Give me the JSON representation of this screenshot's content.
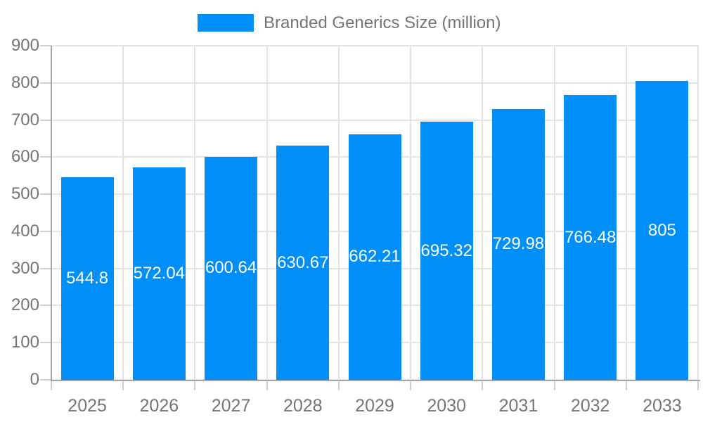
{
  "chart_data": {
    "type": "bar",
    "legend": "Branded Generics Size (million)",
    "legend_position": "top-center",
    "categories": [
      "2025",
      "2026",
      "2027",
      "2028",
      "2029",
      "2030",
      "2031",
      "2032",
      "2033"
    ],
    "series": [
      {
        "name": "Branded Generics Size (million)",
        "values": [
          544.8,
          572.04,
          600.64,
          630.67,
          662.21,
          695.32,
          729.98,
          766.48,
          805
        ]
      }
    ],
    "xlabel": "",
    "ylabel": "",
    "ylim": [
      0,
      900
    ],
    "ytick_step": 100,
    "grid": true,
    "value_labels": "white text centered inside bars",
    "colors": {
      "bar": "#008FF9",
      "value_label": "#FFFFFF",
      "axis_text": "#757575",
      "axis_line": "#A6A6A6",
      "gridline": "#E4E4E4",
      "tick": "#D0D0D0",
      "background": "#FFFFFF"
    }
  }
}
